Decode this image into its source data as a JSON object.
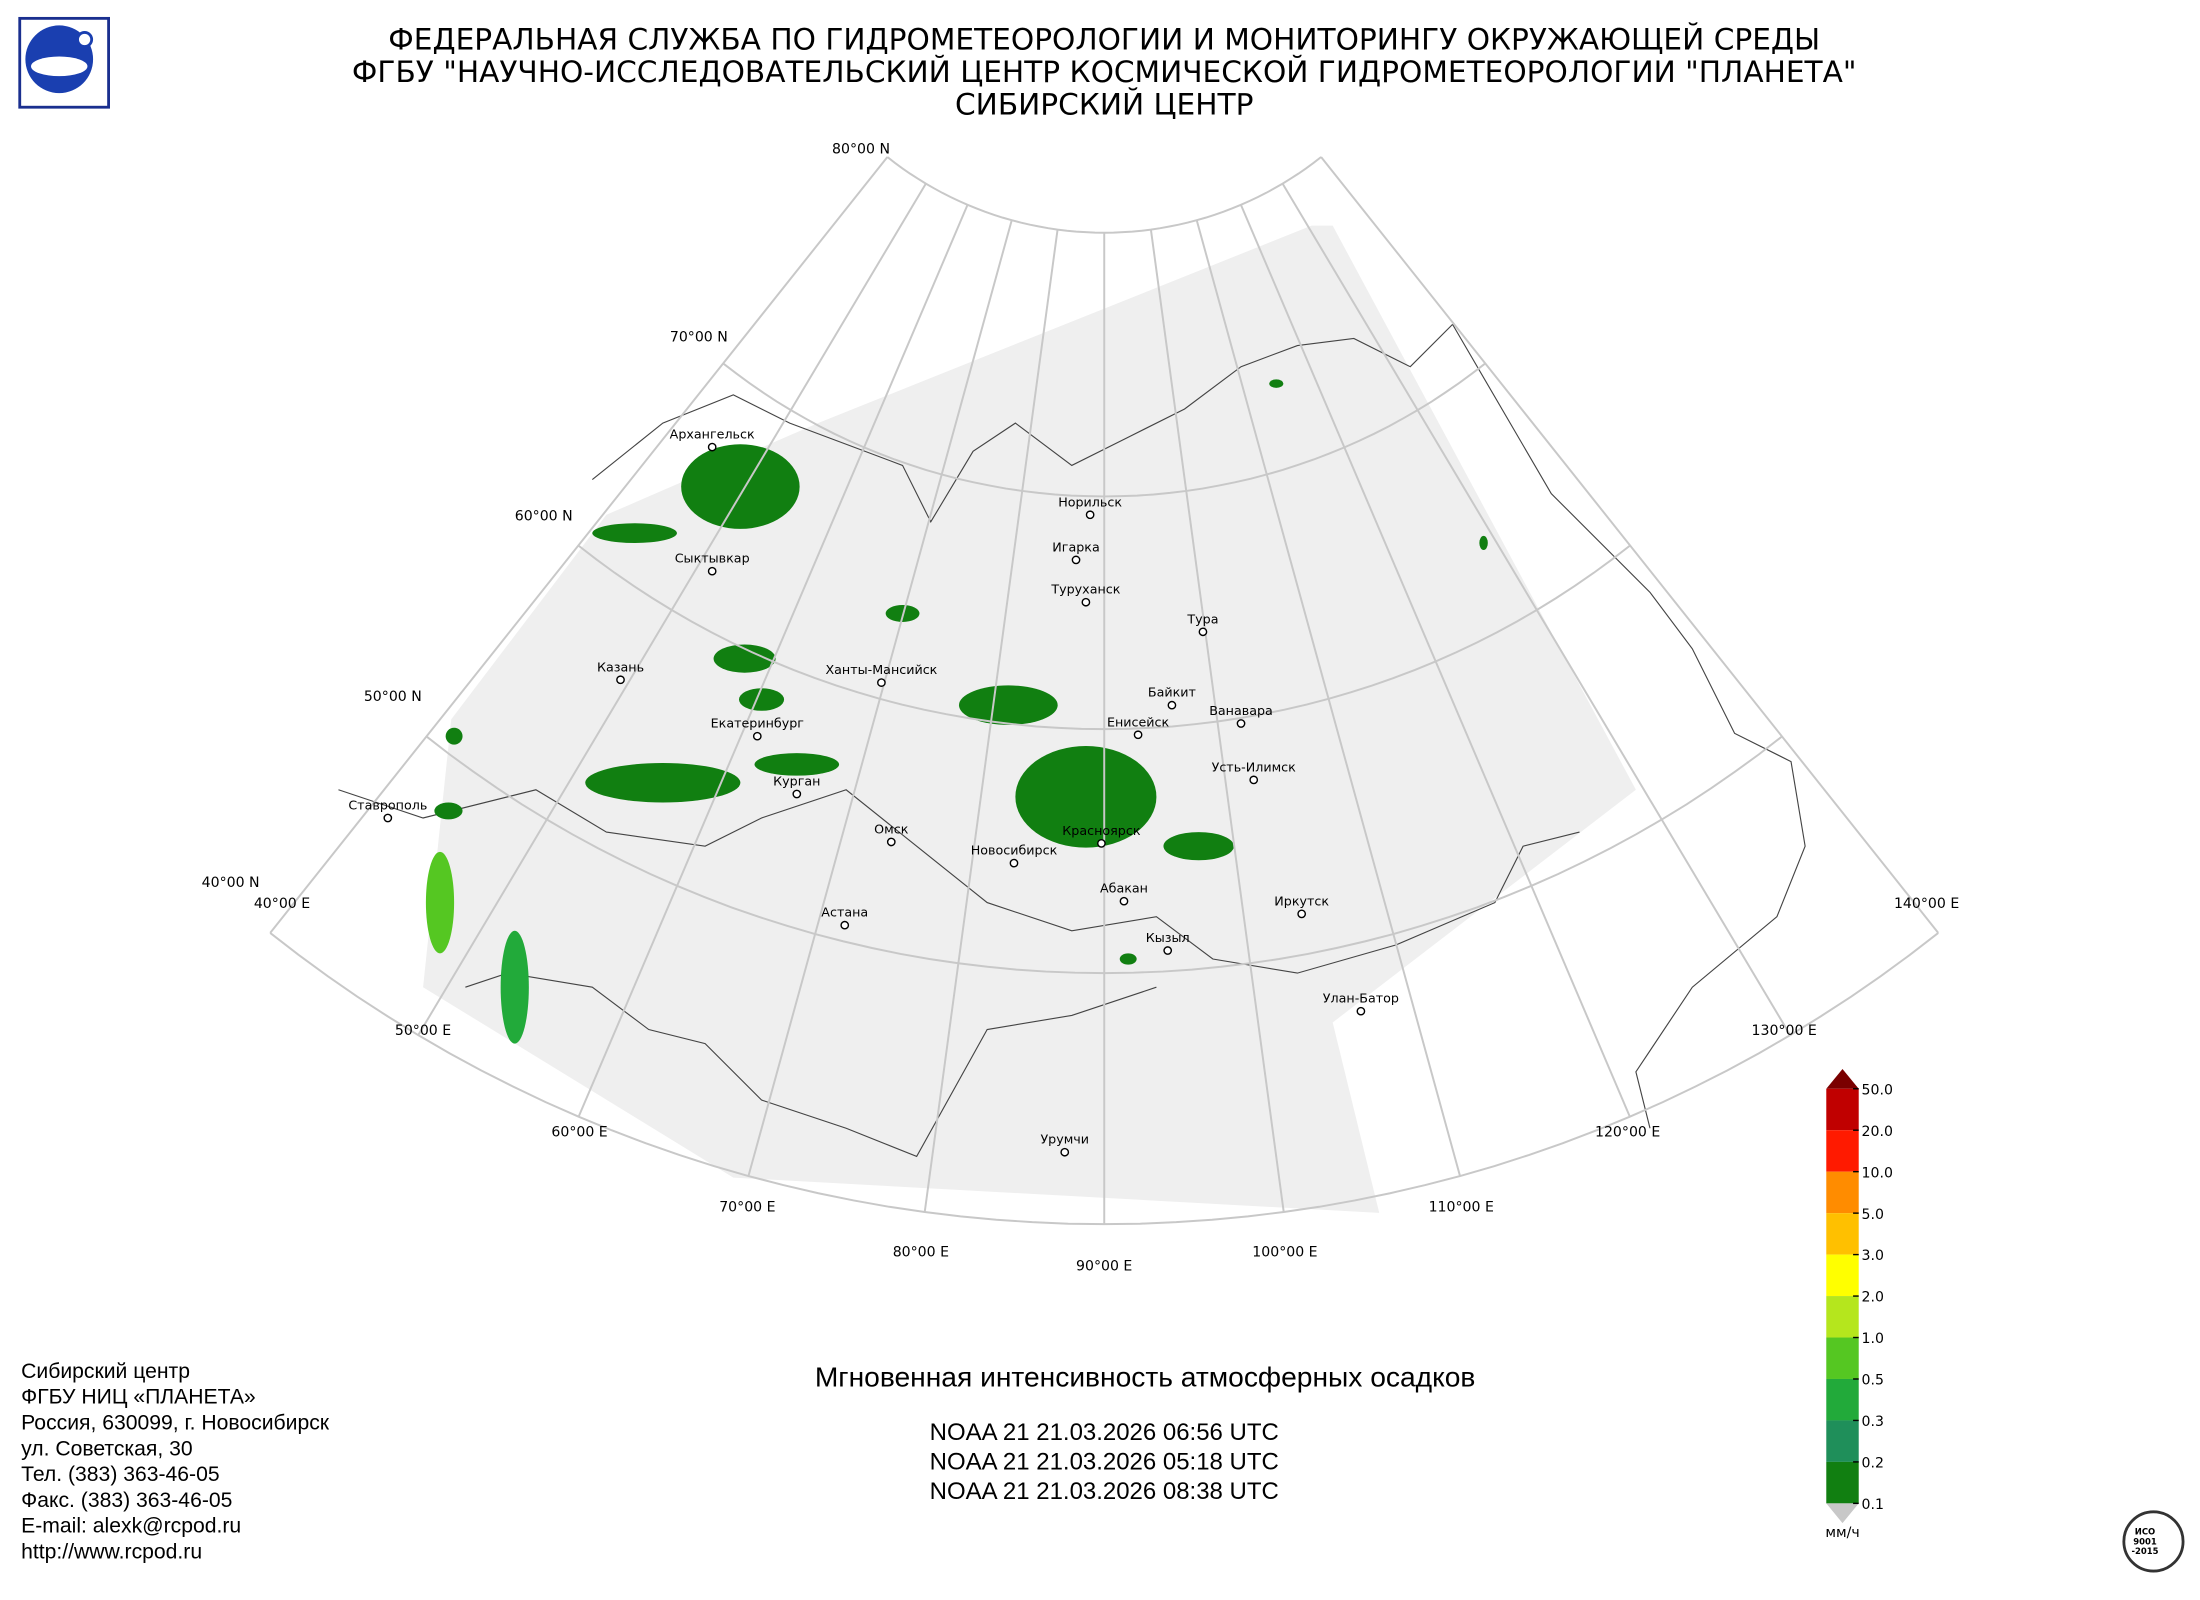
{
  "header": {
    "lines": [
      "ФЕДЕРАЛЬНАЯ СЛУЖБА ПО ГИДРОМЕТЕОРОЛОГИИ И МОНИТОРИНГУ ОКРУЖАЮЩЕЙ СРЕДЫ",
      "ФГБУ \"НАУЧНО-ИССЛЕДОВАТЕЛЬСКИЙ ЦЕНТР КОСМИЧЕСКОЙ ГИДРОМЕТЕОРОЛОГИИ \"ПЛАНЕТА\"",
      "СИБИРСКИЙ ЦЕНТР"
    ]
  },
  "map": {
    "graticule_labels": [
      "80°00 N",
      "70°00 N",
      "60°00 N",
      "50°00 N",
      "40°00 N",
      "40°00 E",
      "50°00 E",
      "60°00 E",
      "70°00 E",
      "80°00 E",
      "90°00 E",
      "100°00 E",
      "110°00 E",
      "120°00 E",
      "130°00 E",
      "140°00 E"
    ],
    "cities": [
      "Архангельск",
      "Сыктывкар",
      "Казань",
      "Екатеринбург",
      "Курган",
      "Ханты-Мансийск",
      "Омск",
      "Новосибирск",
      "Астана",
      "Ставрополь",
      "Норильск",
      "Игарка",
      "Туруханск",
      "Тура",
      "Байкит",
      "Енисейск",
      "Ванавара",
      "Усть-Илимск",
      "Красноярск",
      "Абакан",
      "Кызыл",
      "Иркутск",
      "Улан-Батор",
      "Урумчи"
    ]
  },
  "legend": {
    "ticks": [
      "50.0",
      "20.0",
      "10.0",
      "5.0",
      "3.0",
      "2.0",
      "1.0",
      "0.5",
      "0.3",
      "0.2",
      "0.1"
    ],
    "colors": [
      "#7a0000",
      "#c00000",
      "#ff1a00",
      "#ff8c00",
      "#ffc000",
      "#ffff00",
      "#b5e61d",
      "#55c722",
      "#22aa3a",
      "#1f8f5a",
      "#117f11",
      "#c8c8c8"
    ],
    "unit": "мм/ч"
  },
  "product": {
    "title": "Мгновенная интенсивность атмосферных осадков",
    "passes": [
      "NOAA 21 21.03.2026  06:56 UTC",
      "NOAA 21 21.03.2026  05:18 UTC",
      "NOAA 21 21.03.2026  08:38 UTC"
    ]
  },
  "contact": {
    "lines": [
      "Сибирский центр",
      "ФГБУ НИЦ «ПЛАНЕТА»",
      "Россия, 630099, г. Новосибирск",
      "ул. Советская, 30",
      "Тел. (383) 363-46-05",
      "Факс. (383) 363-46-05",
      "E-mail: alexk@rcpod.ru",
      "http://www.rcpod.ru"
    ]
  },
  "badge": {
    "lines": [
      "ИСО",
      "9001",
      "-2015"
    ]
  }
}
